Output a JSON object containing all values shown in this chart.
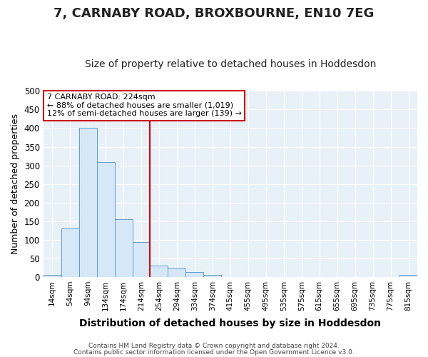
{
  "title": "7, CARNABY ROAD, BROXBOURNE, EN10 7EG",
  "subtitle": "Size of property relative to detached houses in Hoddesdon",
  "xlabel": "Distribution of detached houses by size in Hoddesdon",
  "ylabel": "Number of detached properties",
  "bar_labels": [
    "14sqm",
    "54sqm",
    "94sqm",
    "134sqm",
    "174sqm",
    "214sqm",
    "254sqm",
    "294sqm",
    "334sqm",
    "374sqm",
    "415sqm",
    "455sqm",
    "495sqm",
    "535sqm",
    "575sqm",
    "615sqm",
    "655sqm",
    "695sqm",
    "735sqm",
    "775sqm",
    "815sqm"
  ],
  "bar_values": [
    5,
    130,
    400,
    308,
    155,
    93,
    30,
    22,
    14,
    5,
    0,
    0,
    0,
    0,
    0,
    0,
    0,
    0,
    0,
    0,
    5
  ],
  "bar_color": "#d6e8f7",
  "bar_edge_color": "#5b9bd5",
  "vline_color": "#cc0000",
  "vline_pos": 5.5,
  "ylim": [
    0,
    500
  ],
  "yticks": [
    0,
    50,
    100,
    150,
    200,
    250,
    300,
    350,
    400,
    450,
    500
  ],
  "annotation_title": "7 CARNABY ROAD: 224sqm",
  "annotation_line1": "← 88% of detached houses are smaller (1,019)",
  "annotation_line2": "12% of semi-detached houses are larger (139) →",
  "annotation_box_color": "#cc0000",
  "footer1": "Contains HM Land Registry data © Crown copyright and database right 2024.",
  "footer2": "Contains public sector information licensed under the Open Government Licence v3.0.",
  "bg_color": "#e8f0f8",
  "grid_color": "#ffffff",
  "fig_bg": "#ffffff",
  "title_fontsize": 13,
  "subtitle_fontsize": 10,
  "ylabel_fontsize": 9,
  "xlabel_fontsize": 10
}
